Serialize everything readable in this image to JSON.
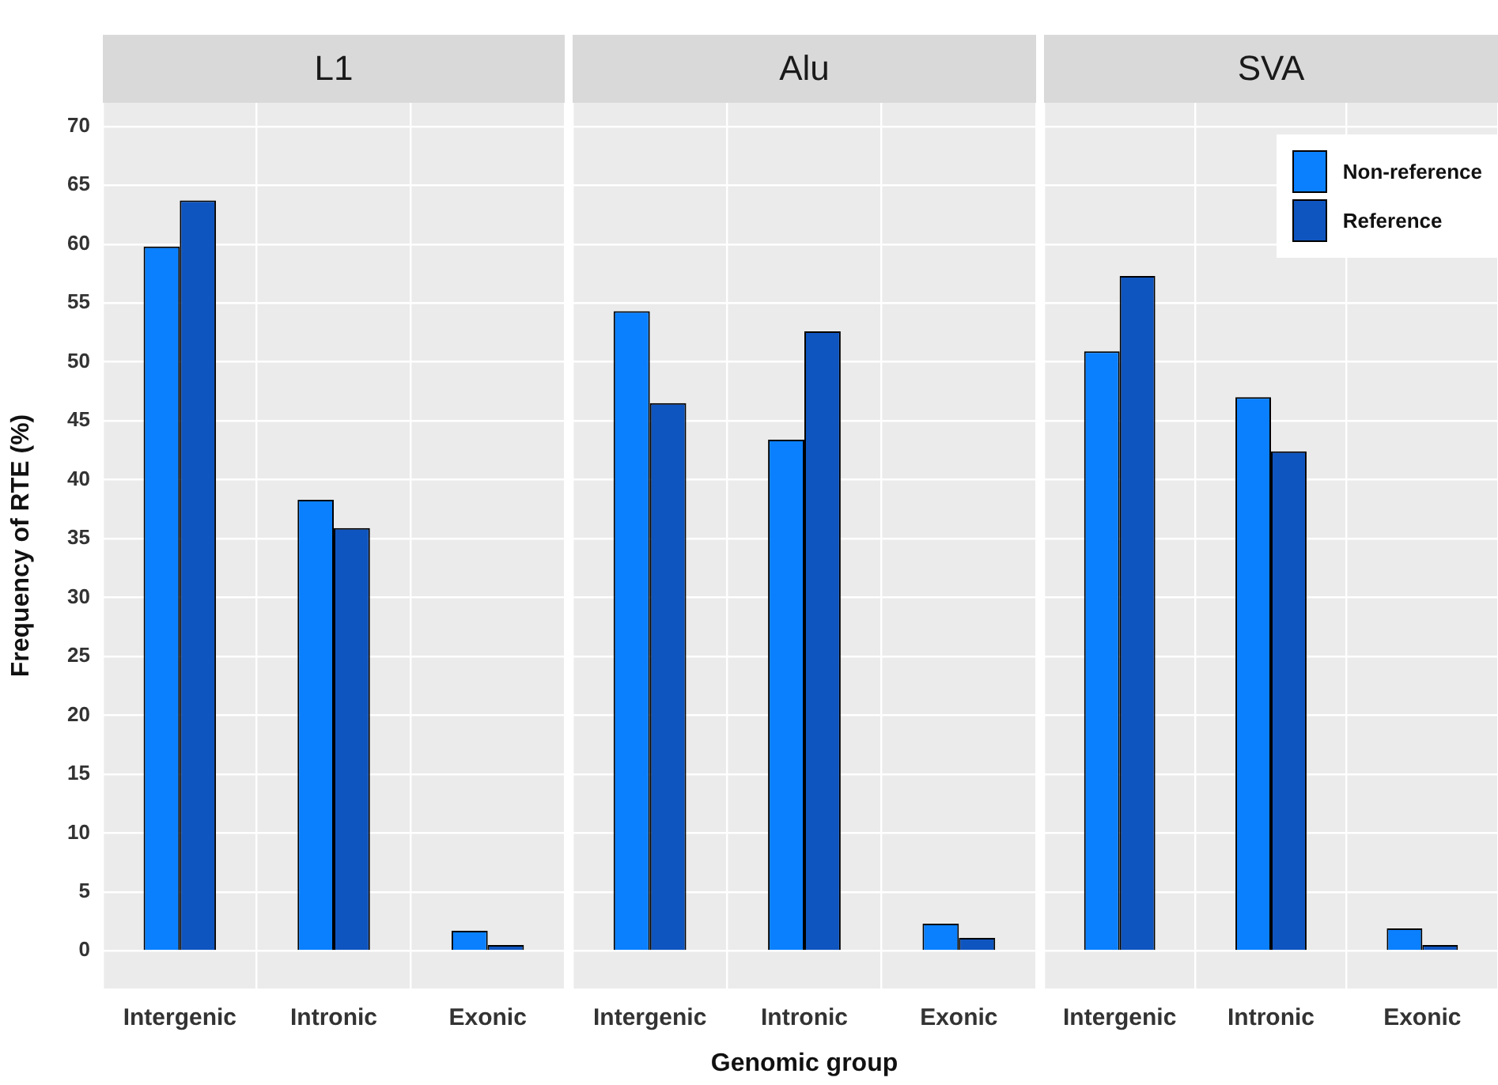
{
  "chart_data": [
    {
      "type": "bar",
      "title": "L1",
      "ylabel": "Frequency of RTE (%)",
      "categories": [
        "Intergenic",
        "Intronic",
        "Exonic"
      ],
      "series": [
        {
          "color": "#0a80ff",
          "values": [
            59.8,
            38.3,
            1.7
          ]
        },
        {
          "color": "#0f55bf",
          "values": [
            63.7,
            35.9,
            0.5
          ]
        }
      ],
      "ylim": [
        -3.2,
        72
      ],
      "yticks": [
        0,
        5,
        10,
        15,
        20,
        25,
        30,
        35,
        40,
        45,
        50,
        55,
        60,
        65,
        70
      ],
      "grid": true,
      "legend": false
    },
    {
      "type": "bar",
      "title": "Alu",
      "xlabel": "Genomic group",
      "categories": [
        "Intergenic",
        "Intronic",
        "Exonic"
      ],
      "series": [
        {
          "color": "#0a80ff",
          "values": [
            54.3,
            43.4,
            2.3
          ]
        },
        {
          "color": "#0f55bf",
          "values": [
            46.5,
            52.6,
            1.1
          ]
        }
      ],
      "ylim": [
        -3.2,
        72
      ],
      "yticks": [
        0,
        5,
        10,
        15,
        20,
        25,
        30,
        35,
        40,
        45,
        50,
        55,
        60,
        65,
        70
      ],
      "grid": true,
      "legend": false,
      "tick_labels": "x"
    },
    {
      "type": "bar",
      "title": "SVA",
      "categories": [
        "Intergenic",
        "Intronic",
        "Exonic"
      ],
      "series": [
        {
          "name": "Non-reference",
          "color": "#0a80ff",
          "values": [
            50.9,
            47.0,
            1.9
          ]
        },
        {
          "name": "Reference",
          "color": "#0f55bf",
          "values": [
            57.3,
            42.4,
            0.5
          ]
        }
      ],
      "ylim": [
        -3.2,
        72
      ],
      "yticks": [
        0,
        5,
        10,
        15,
        20,
        25,
        30,
        35,
        40,
        45,
        50,
        55,
        60,
        65,
        70
      ],
      "grid": true,
      "legend": "top right",
      "tick_labels": "x"
    }
  ]
}
